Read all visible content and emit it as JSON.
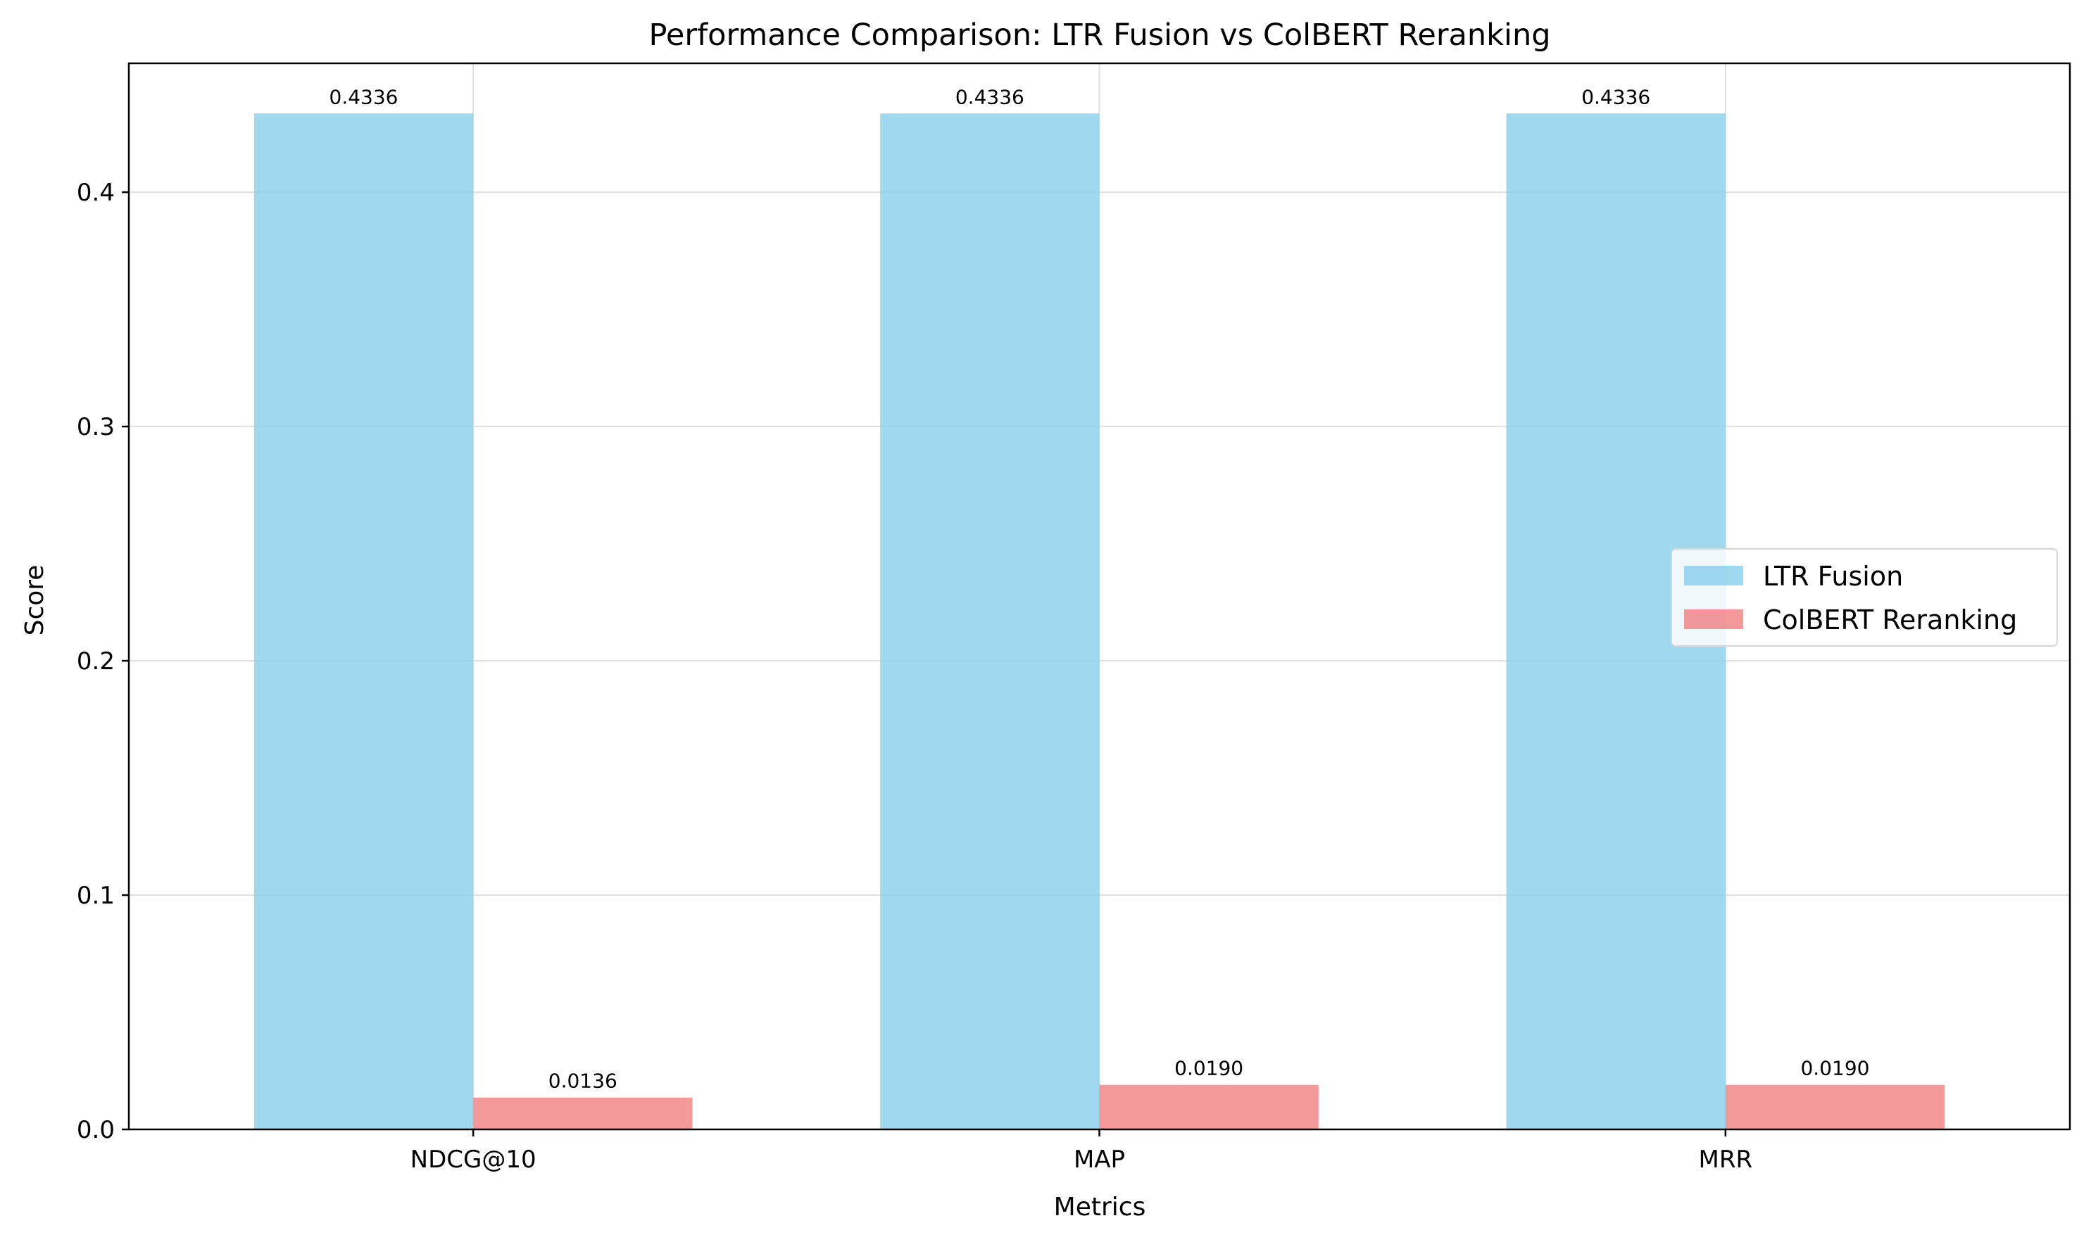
{
  "chart_data": {
    "type": "bar",
    "title": "Performance Comparison: LTR Fusion vs ColBERT Reranking",
    "xlabel": "Metrics",
    "ylabel": "Score",
    "categories": [
      "NDCG@10",
      "MAP",
      "MRR"
    ],
    "ylim": [
      0,
      0.455
    ],
    "yticks": [
      0.0,
      0.1,
      0.2,
      0.3,
      0.4
    ],
    "ytick_labels": [
      "0.0",
      "0.1",
      "0.2",
      "0.3",
      "0.4"
    ],
    "grid": true,
    "legend_position": "center-right",
    "series": [
      {
        "name": "LTR Fusion",
        "color": "#87ceeb",
        "values": [
          0.4336,
          0.4336,
          0.4336
        ],
        "value_labels": [
          "0.4336",
          "0.4336",
          "0.4336"
        ]
      },
      {
        "name": "ColBERT Reranking",
        "color": "#f08080",
        "values": [
          0.0136,
          0.019,
          0.019
        ],
        "value_labels": [
          "0.0136",
          "0.0190",
          "0.0190"
        ]
      }
    ]
  }
}
